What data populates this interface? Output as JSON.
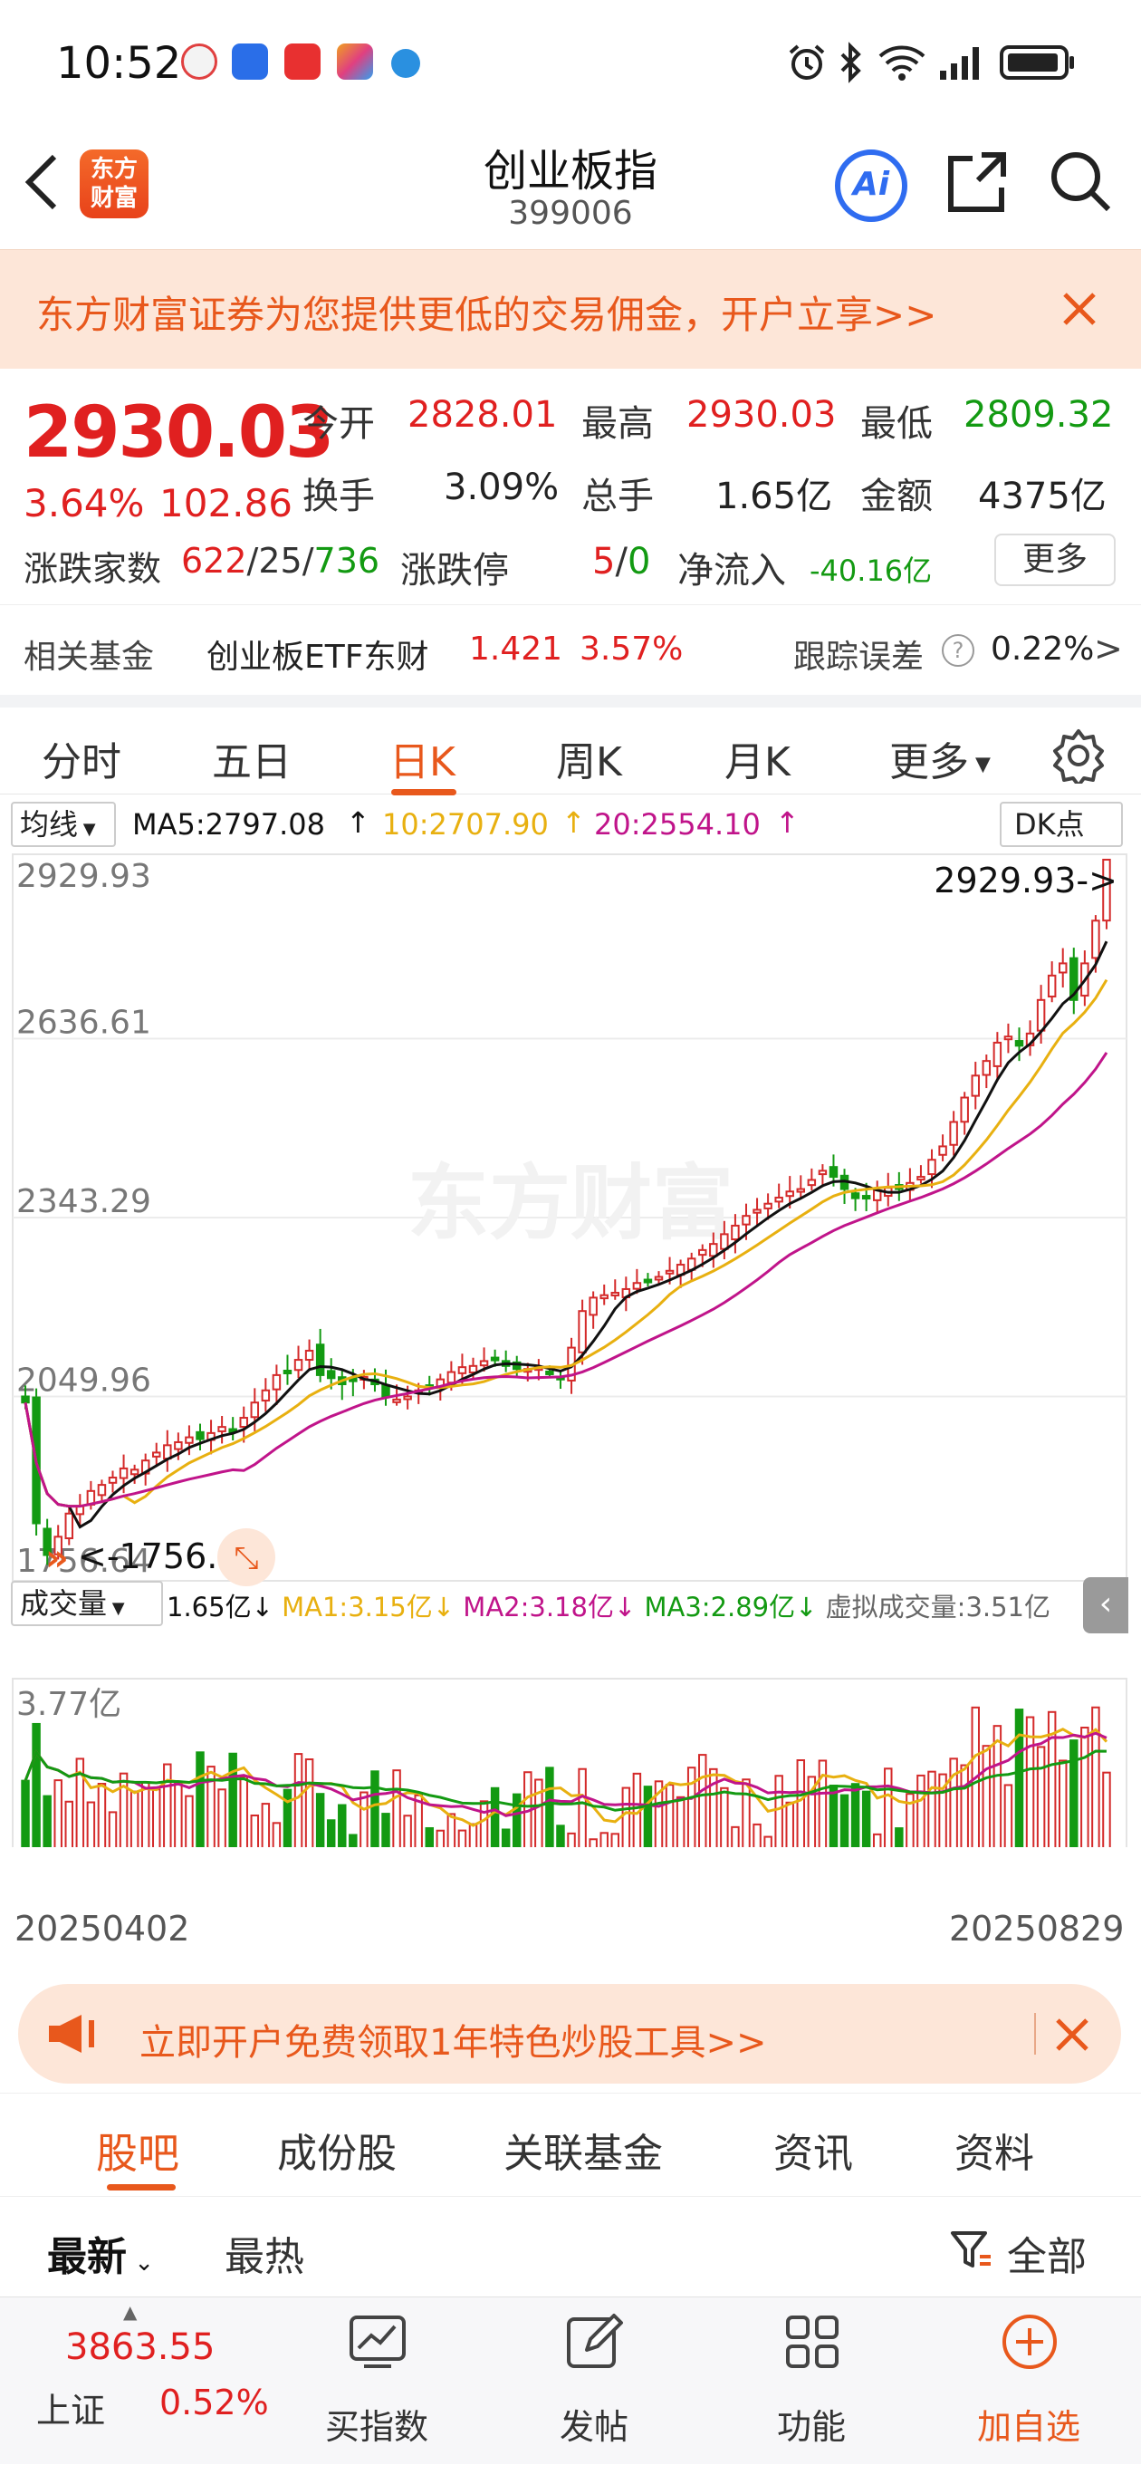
{
  "status_bar": {
    "time": "10:52"
  },
  "header": {
    "logo_text": "东方\n财富",
    "title": "创业板指",
    "code": "399006",
    "ai_label": "Ai"
  },
  "banner": {
    "text": "东方财富证券为您提供更低的交易佣金，开户立享>>"
  },
  "quote": {
    "price": "2930.03",
    "change_pct": "3.64%",
    "change": "102.86",
    "open_label": "今开",
    "open": "2828.01",
    "high_label": "最高",
    "high": "2930.03",
    "low_label": "最低",
    "low": "2809.32",
    "turnover_label": "换手",
    "turnover": "3.09%",
    "volume_label": "总手",
    "volume": "1.65亿",
    "amount_label": "金额",
    "amount": "4375亿",
    "breadth_label": "涨跌家数",
    "breadth_up": "622",
    "breadth_flat": "25",
    "breadth_down": "736",
    "limit_label": "涨跌停",
    "limit_up": "5",
    "limit_down": "0",
    "netflow_label": "净流入",
    "netflow": "-40.16亿",
    "more_button": "更多"
  },
  "fund": {
    "label": "相关基金",
    "name": "创业板ETF东财",
    "price": "1.421",
    "pct": "3.57%",
    "tracking_label": "跟踪误差",
    "tracking_value": "0.22%",
    "chevron": ">"
  },
  "period_tabs": [
    {
      "label": "分时"
    },
    {
      "label": "五日"
    },
    {
      "label": "日K"
    },
    {
      "label": "周K"
    },
    {
      "label": "月K"
    },
    {
      "label": "更多"
    }
  ],
  "period_selected": "日K",
  "chart_data": [
    {
      "type": "candlestick",
      "title": "",
      "indicator_select": "均线",
      "ma_legend": [
        {
          "label": "MA5:2797.08",
          "color": "#111111"
        },
        {
          "label": "10:2707.90",
          "color": "#e8b010"
        },
        {
          "label": "20:2554.10",
          "color": "#c0148a"
        }
      ],
      "dk_label": "DK点",
      "y_ticks": [
        "2929.93",
        "2636.61",
        "2343.29",
        "2049.96",
        "1756.64"
      ],
      "ylim": [
        1756.64,
        2929.93
      ],
      "max_annotation": "2929.93->",
      "min_annotation": "<-1756.64",
      "watermark": "东方财富",
      "x_start": "20250402",
      "x_end": "20250829",
      "close_series": [
        2040,
        1842,
        1790,
        1820,
        1858,
        1870,
        1895,
        1905,
        1917,
        1932,
        1930,
        1945,
        1958,
        1970,
        1975,
        1983,
        1980,
        1990,
        2000,
        1995,
        2015,
        2040,
        2060,
        2085,
        2090,
        2110,
        2125,
        2085,
        2080,
        2070,
        2075,
        2082,
        2070,
        2050,
        2045,
        2050,
        2060,
        2065,
        2078,
        2090,
        2098,
        2100,
        2108,
        2112,
        2100,
        2095,
        2095,
        2098,
        2090,
        2080,
        2130,
        2190,
        2212,
        2216,
        2220,
        2226,
        2236,
        2240,
        2246,
        2256,
        2266,
        2276,
        2290,
        2300,
        2316,
        2330,
        2346,
        2356,
        2366,
        2376,
        2386,
        2390,
        2405,
        2420,
        2410,
        2390,
        2375,
        2378,
        2388,
        2392,
        2390,
        2400,
        2410,
        2438,
        2460,
        2500,
        2540,
        2576,
        2600,
        2630,
        2640,
        2625,
        2645,
        2700,
        2740,
        2760,
        2700,
        2760,
        2830,
        2930
      ]
    },
    {
      "type": "bar",
      "title": "",
      "indicator_select": "成交量",
      "legend": [
        {
          "label": "1.65亿",
          "color": "#111111"
        },
        {
          "label": "MA1:3.15亿",
          "color": "#e8b010"
        },
        {
          "label": "MA2:3.18亿",
          "color": "#c0148a"
        },
        {
          "label": "MA3:2.89亿",
          "color": "#139a12"
        },
        {
          "label": "虚拟成交量:3.51亿",
          "color": "#666666"
        }
      ],
      "y_max_label": "3.77亿",
      "ylim": [
        0,
        3.77
      ]
    }
  ],
  "promo": {
    "text": "立即开户免费领取1年特色炒股工具>>"
  },
  "sub_tabs": [
    {
      "label": "股吧"
    },
    {
      "label": "成份股"
    },
    {
      "label": "关联基金"
    },
    {
      "label": "资讯"
    },
    {
      "label": "资料"
    }
  ],
  "filter": {
    "latest": "最新",
    "hot": "最热",
    "all": "全部"
  },
  "bottom_bar": {
    "index_value": "3863.55",
    "index_name": "上证",
    "index_pct": "0.52%",
    "items": [
      {
        "label": "买指数"
      },
      {
        "label": "发帖"
      },
      {
        "label": "功能"
      },
      {
        "label": "加自选"
      }
    ]
  }
}
